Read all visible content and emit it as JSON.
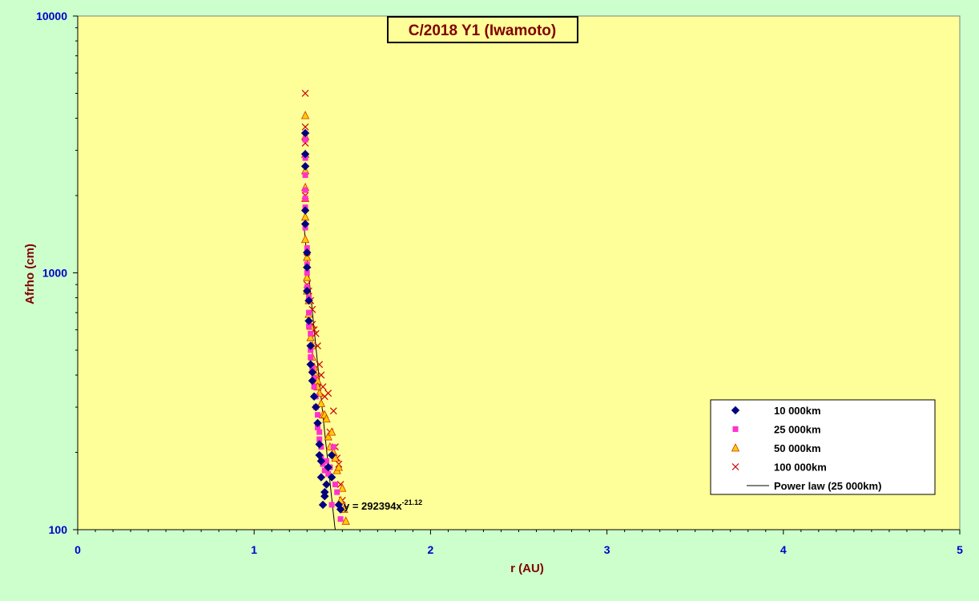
{
  "chart_data": {
    "type": "scatter",
    "title": "C/2018 Y1 (Iwamoto)",
    "xlabel": "r (AU)",
    "ylabel": "Afrho (cm)",
    "xlim": [
      0,
      5
    ],
    "ylim": [
      100,
      10000
    ],
    "y_scale": "log",
    "x_ticks": [
      "0",
      "1",
      "2",
      "3",
      "4",
      "5"
    ],
    "y_ticks": [
      "100",
      "1000",
      "10000"
    ],
    "grid": false,
    "legend_position": "lower-right",
    "colors": {
      "outer_background": "#ccffcc",
      "plot_background": "#ffff99",
      "axis_label_color": "#800000",
      "tick_label_color": "#0000cc",
      "title_color": "#800000"
    },
    "series": [
      {
        "name": "10 000km",
        "marker": "diamond",
        "color": "#000080",
        "x": [
          1.29,
          1.29,
          1.29,
          1.29,
          1.29,
          1.3,
          1.3,
          1.3,
          1.31,
          1.31,
          1.32,
          1.32,
          1.33,
          1.33,
          1.34,
          1.35,
          1.36,
          1.37,
          1.37,
          1.38,
          1.38,
          1.39,
          1.4,
          1.4,
          1.41,
          1.42,
          1.44,
          1.44,
          1.48,
          1.49
        ],
        "y": [
          3500,
          2900,
          2600,
          1750,
          1550,
          1200,
          1050,
          850,
          780,
          650,
          520,
          440,
          410,
          380,
          330,
          300,
          260,
          215,
          195,
          185,
          160,
          125,
          140,
          135,
          150,
          175,
          160,
          195,
          125,
          120
        ]
      },
      {
        "name": "25 000km",
        "marker": "square",
        "color": "#ff33cc",
        "x": [
          1.29,
          1.29,
          1.29,
          1.29,
          1.29,
          1.29,
          1.29,
          1.3,
          1.3,
          1.3,
          1.3,
          1.31,
          1.31,
          1.31,
          1.32,
          1.32,
          1.32,
          1.33,
          1.33,
          1.34,
          1.34,
          1.35,
          1.35,
          1.36,
          1.36,
          1.37,
          1.37,
          1.38,
          1.38,
          1.39,
          1.4,
          1.41,
          1.42,
          1.43,
          1.44,
          1.45,
          1.46,
          1.47,
          1.49
        ],
        "y": [
          3300,
          2800,
          2400,
          2100,
          1950,
          1800,
          1500,
          1250,
          1080,
          1000,
          880,
          800,
          700,
          620,
          580,
          500,
          470,
          430,
          420,
          390,
          360,
          330,
          300,
          280,
          250,
          240,
          225,
          210,
          190,
          180,
          170,
          185,
          165,
          175,
          125,
          210,
          150,
          140,
          110
        ]
      },
      {
        "name": "50 000km",
        "marker": "triangle",
        "color": "#ffcc00",
        "x": [
          1.29,
          1.29,
          1.29,
          1.29,
          1.29,
          1.29,
          1.29,
          1.29,
          1.3,
          1.3,
          1.3,
          1.31,
          1.31,
          1.32,
          1.32,
          1.33,
          1.33,
          1.34,
          1.35,
          1.36,
          1.36,
          1.37,
          1.38,
          1.39,
          1.4,
          1.41,
          1.42,
          1.43,
          1.44,
          1.45,
          1.46,
          1.47,
          1.48,
          1.49,
          1.5,
          1.51,
          1.52
        ],
        "y": [
          4100,
          3400,
          2900,
          2500,
          2150,
          1950,
          1650,
          1350,
          1150,
          960,
          850,
          780,
          690,
          620,
          560,
          520,
          470,
          430,
          400,
          380,
          360,
          340,
          310,
          280,
          280,
          270,
          230,
          210,
          240,
          200,
          190,
          170,
          175,
          130,
          145,
          120,
          108
        ]
      },
      {
        "name": "100 000km",
        "marker": "x",
        "color": "#cc0000",
        "x": [
          1.29,
          1.29,
          1.29,
          1.29,
          1.3,
          1.3,
          1.31,
          1.32,
          1.33,
          1.33,
          1.34,
          1.35,
          1.36,
          1.37,
          1.38,
          1.39,
          1.4,
          1.42,
          1.43,
          1.45,
          1.46,
          1.47,
          1.48,
          1.49,
          1.5,
          1.51
        ],
        "y": [
          5000,
          3700,
          3200,
          2000,
          1150,
          900,
          850,
          780,
          720,
          630,
          600,
          580,
          520,
          440,
          400,
          360,
          330,
          340,
          240,
          290,
          210,
          190,
          180,
          150,
          130,
          120
        ]
      }
    ],
    "trendline": {
      "name": "Power law (25 000km)",
      "color": "#000000",
      "a": 292394,
      "b": -21.12,
      "x_range": [
        1.285,
        1.46
      ],
      "equation_prefix": "y = 292394x",
      "equation_exponent": "-21.12"
    }
  }
}
